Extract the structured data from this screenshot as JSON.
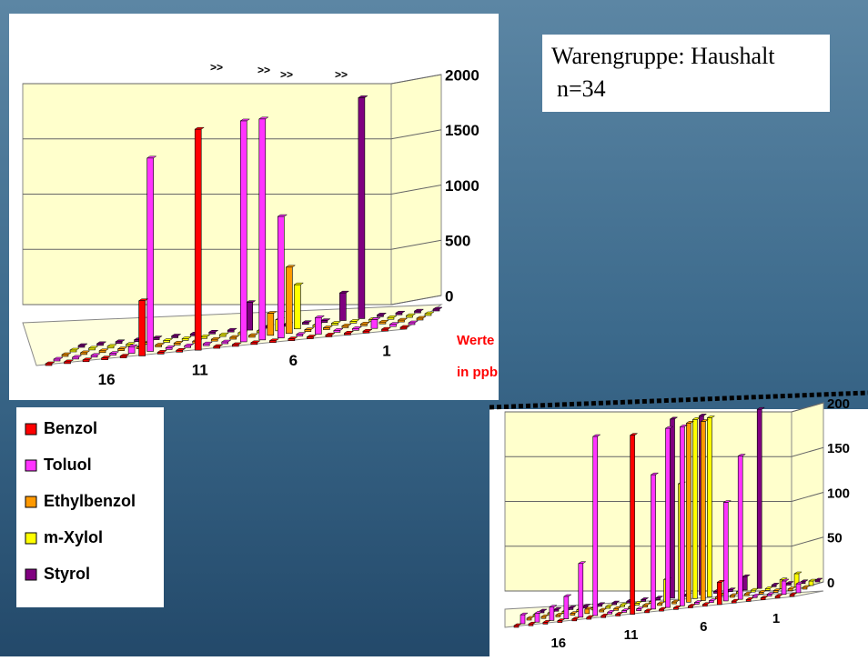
{
  "title_box": {
    "line1": "Warengruppe: Haushalt",
    "line2": "n=34"
  },
  "chart_data": [
    {
      "type": "bar3d",
      "categories": [
        "1",
        null,
        null,
        null,
        null,
        "6",
        null,
        null,
        null,
        null,
        "11",
        null,
        null,
        null,
        null,
        "16",
        null,
        null,
        null,
        null
      ],
      "series": [
        {
          "name": "Benzol",
          "color": "#ff0000",
          "values": [
            0,
            0,
            0,
            0,
            0,
            0,
            0,
            0,
            0,
            0,
            0,
            2000,
            0,
            0,
            500,
            0,
            0,
            0,
            0,
            0
          ]
        },
        {
          "name": "Toluol",
          "color": "#ff33ff",
          "values": [
            0,
            20,
            80,
            0,
            0,
            150,
            0,
            1100,
            2000,
            2000,
            0,
            0,
            0,
            0,
            1750,
            60,
            0,
            0,
            0,
            0
          ]
        },
        {
          "name": "Ethylbenzol",
          "color": "#ff9900",
          "values": [
            0,
            0,
            0,
            0,
            0,
            0,
            0,
            600,
            200,
            0,
            0,
            0,
            0,
            0,
            0,
            0,
            0,
            0,
            0,
            0
          ]
        },
        {
          "name": "m-Xylol",
          "color": "#ffff00",
          "values": [
            0,
            0,
            0,
            0,
            0,
            0,
            0,
            400,
            100,
            0,
            0,
            0,
            0,
            0,
            0,
            0,
            0,
            0,
            0,
            0
          ]
        },
        {
          "name": "Styrol",
          "color": "#800080",
          "values": [
            0,
            0,
            0,
            0,
            2000,
            250,
            0,
            0,
            0,
            0,
            250,
            0,
            0,
            0,
            0,
            0,
            0,
            0,
            0,
            0
          ]
        }
      ],
      "ylim": [
        0,
        2000
      ],
      "yticks": [
        0,
        500,
        1000,
        1500,
        2000
      ],
      "grid": true,
      "annotations": [
        ">>",
        ">>",
        ">>",
        ">>"
      ],
      "y_label": [
        "Werte",
        "in ppb"
      ]
    },
    {
      "type": "bar3d",
      "categories": [
        "1",
        null,
        null,
        null,
        null,
        "6",
        null,
        null,
        null,
        null,
        "11",
        null,
        null,
        null,
        null,
        "16",
        null,
        null,
        null,
        null
      ],
      "series": [
        {
          "name": "Benzol",
          "color": "#ff0000",
          "values": [
            0,
            0,
            0,
            0,
            0,
            25,
            0,
            0,
            0,
            0,
            0,
            200,
            0,
            0,
            0,
            0,
            0,
            0,
            0,
            0
          ]
        },
        {
          "name": "Toluol",
          "color": "#ff33ff",
          "values": [
            10,
            15,
            0,
            0,
            160,
            110,
            0,
            0,
            200,
            200,
            150,
            0,
            0,
            0,
            200,
            60,
            25,
            15,
            10,
            10
          ]
        },
        {
          "name": "Ethylbenzol",
          "color": "#ff9900",
          "values": [
            0,
            0,
            0,
            0,
            0,
            0,
            0,
            200,
            200,
            0,
            0,
            0,
            0,
            0,
            0,
            5,
            0,
            0,
            0,
            0
          ]
        },
        {
          "name": "m-Xylol",
          "color": "#ffff00",
          "values": [
            5,
            15,
            10,
            0,
            0,
            0,
            0,
            200,
            200,
            130,
            25,
            0,
            0,
            0,
            0,
            0,
            0,
            0,
            0,
            0
          ]
        },
        {
          "name": "Styrol",
          "color": "#800080",
          "values": [
            0,
            0,
            0,
            0,
            200,
            15,
            0,
            0,
            200,
            0,
            200,
            0,
            0,
            0,
            0,
            0,
            0,
            0,
            0,
            0
          ]
        }
      ],
      "ylim": [
        0,
        200
      ],
      "yticks": [
        0,
        50,
        100,
        150,
        200
      ],
      "grid": true
    }
  ]
}
